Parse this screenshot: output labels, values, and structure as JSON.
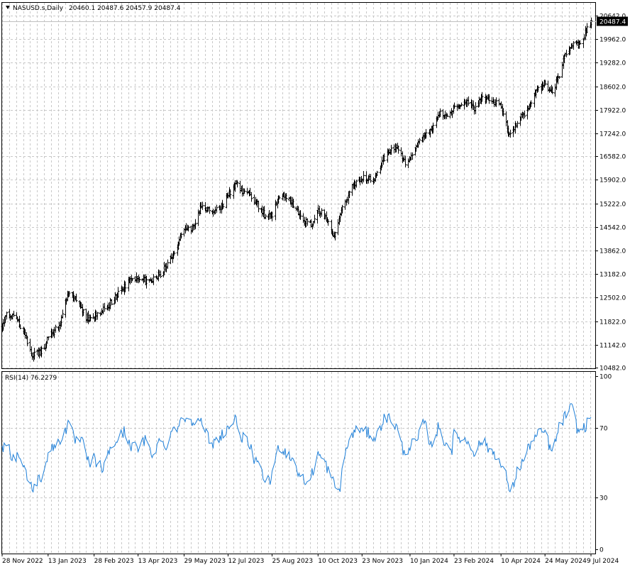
{
  "chart_data": [
    {
      "type": "ohlc",
      "symbol_header": "NASUSD.s,Daily",
      "last_ohlc": "20460.1 20487.6 20457.9 20487.4",
      "last_price_label": "20487.4",
      "last_price": 20487.4,
      "ylim": [
        10482.0,
        20642.0
      ],
      "y_ticks": [
        "20642.0",
        "19962.0",
        "19282.0",
        "18602.0",
        "17922.0",
        "17242.0",
        "16582.0",
        "15902.0",
        "15222.0",
        "14542.0",
        "13862.0",
        "13182.0",
        "12502.0",
        "11822.0",
        "11142.0",
        "10482.0"
      ],
      "x_ticks": [
        "28 Nov 2022",
        "13 Jan 2023",
        "28 Feb 2023",
        "13 Apr 2023",
        "29 May 2023",
        "12 Jul 2023",
        "25 Aug 2023",
        "10 Oct 2023",
        "23 Nov 2023",
        "10 Jan 2024",
        "23 Feb 2024",
        "10 Apr 2024",
        "24 May 2024",
        "9 Jul 2024"
      ],
      "bar_color": "#000000",
      "grid": true,
      "approx_closes": [
        {
          "date": "2022-11-28",
          "close": 11650
        },
        {
          "date": "2022-12-02",
          "close": 12050
        },
        {
          "date": "2022-12-13",
          "close": 11900
        },
        {
          "date": "2022-12-28",
          "close": 10850
        },
        {
          "date": "2023-01-06",
          "close": 10950
        },
        {
          "date": "2023-01-13",
          "close": 11350
        },
        {
          "date": "2023-01-25",
          "close": 11750
        },
        {
          "date": "2023-02-02",
          "close": 12650
        },
        {
          "date": "2023-02-10",
          "close": 12450
        },
        {
          "date": "2023-02-21",
          "close": 11900
        },
        {
          "date": "2023-02-28",
          "close": 11950
        },
        {
          "date": "2023-03-13",
          "close": 12250
        },
        {
          "date": "2023-03-24",
          "close": 12650
        },
        {
          "date": "2023-04-06",
          "close": 13000
        },
        {
          "date": "2023-04-13",
          "close": 13050
        },
        {
          "date": "2023-04-25",
          "close": 12950
        },
        {
          "date": "2023-05-05",
          "close": 13200
        },
        {
          "date": "2023-05-19",
          "close": 13750
        },
        {
          "date": "2023-05-29",
          "close": 14450
        },
        {
          "date": "2023-06-07",
          "close": 14550
        },
        {
          "date": "2023-06-15",
          "close": 15150
        },
        {
          "date": "2023-06-26",
          "close": 15000
        },
        {
          "date": "2023-07-05",
          "close": 15100
        },
        {
          "date": "2023-07-12",
          "close": 15450
        },
        {
          "date": "2023-07-19",
          "close": 15800
        },
        {
          "date": "2023-07-26",
          "close": 15600
        },
        {
          "date": "2023-08-03",
          "close": 15450
        },
        {
          "date": "2023-08-10",
          "close": 15200
        },
        {
          "date": "2023-08-18",
          "close": 14850
        },
        {
          "date": "2023-08-25",
          "close": 14900
        },
        {
          "date": "2023-09-01",
          "close": 15450
        },
        {
          "date": "2023-09-08",
          "close": 15400
        },
        {
          "date": "2023-09-20",
          "close": 15000
        },
        {
          "date": "2023-09-27",
          "close": 14700
        },
        {
          "date": "2023-10-03",
          "close": 14600
        },
        {
          "date": "2023-10-10",
          "close": 15050
        },
        {
          "date": "2023-10-20",
          "close": 14700
        },
        {
          "date": "2023-10-26",
          "close": 14250
        },
        {
          "date": "2023-11-03",
          "close": 15050
        },
        {
          "date": "2023-11-14",
          "close": 15750
        },
        {
          "date": "2023-11-23",
          "close": 15950
        },
        {
          "date": "2023-12-04",
          "close": 15900
        },
        {
          "date": "2023-12-14",
          "close": 16500
        },
        {
          "date": "2023-12-27",
          "close": 16900
        },
        {
          "date": "2024-01-05",
          "close": 16350
        },
        {
          "date": "2024-01-10",
          "close": 16500
        },
        {
          "date": "2024-01-19",
          "close": 17050
        },
        {
          "date": "2024-01-31",
          "close": 17300
        },
        {
          "date": "2024-02-09",
          "close": 17900
        },
        {
          "date": "2024-02-14",
          "close": 17700
        },
        {
          "date": "2024-02-23",
          "close": 17950
        },
        {
          "date": "2024-03-07",
          "close": 18150
        },
        {
          "date": "2024-03-15",
          "close": 17950
        },
        {
          "date": "2024-03-22",
          "close": 18300
        },
        {
          "date": "2024-04-02",
          "close": 18150
        },
        {
          "date": "2024-04-10",
          "close": 18000
        },
        {
          "date": "2024-04-19",
          "close": 17150
        },
        {
          "date": "2024-04-26",
          "close": 17600
        },
        {
          "date": "2024-05-03",
          "close": 17800
        },
        {
          "date": "2024-05-15",
          "close": 18450
        },
        {
          "date": "2024-05-24",
          "close": 18700
        },
        {
          "date": "2024-05-31",
          "close": 18400
        },
        {
          "date": "2024-06-07",
          "close": 18950
        },
        {
          "date": "2024-06-14",
          "close": 19600
        },
        {
          "date": "2024-06-20",
          "close": 19850
        },
        {
          "date": "2024-06-28",
          "close": 19750
        },
        {
          "date": "2024-07-05",
          "close": 20300
        },
        {
          "date": "2024-07-09",
          "close": 20487.4
        }
      ]
    },
    {
      "type": "line",
      "indicator_label": "RSI(14) 76.2279",
      "last_value": 76.2279,
      "ylim": [
        0,
        100
      ],
      "y_ticks": [
        "100",
        "70",
        "30",
        "0"
      ],
      "line_color": "#1e7fd8",
      "grid": true,
      "approx_values": [
        {
          "date": "2022-11-28",
          "value": 58
        },
        {
          "date": "2022-12-02",
          "value": 63
        },
        {
          "date": "2022-12-09",
          "value": 52
        },
        {
          "date": "2022-12-15",
          "value": 55
        },
        {
          "date": "2022-12-22",
          "value": 44
        },
        {
          "date": "2022-12-28",
          "value": 35
        },
        {
          "date": "2023-01-06",
          "value": 42
        },
        {
          "date": "2023-01-13",
          "value": 55
        },
        {
          "date": "2023-01-20",
          "value": 60
        },
        {
          "date": "2023-01-27",
          "value": 65
        },
        {
          "date": "2023-02-02",
          "value": 72
        },
        {
          "date": "2023-02-09",
          "value": 63
        },
        {
          "date": "2023-02-16",
          "value": 62
        },
        {
          "date": "2023-02-23",
          "value": 49
        },
        {
          "date": "2023-02-28",
          "value": 52
        },
        {
          "date": "2023-03-09",
          "value": 46
        },
        {
          "date": "2023-03-16",
          "value": 58
        },
        {
          "date": "2023-03-23",
          "value": 63
        },
        {
          "date": "2023-03-30",
          "value": 68
        },
        {
          "date": "2023-04-06",
          "value": 60
        },
        {
          "date": "2023-04-13",
          "value": 58
        },
        {
          "date": "2023-04-20",
          "value": 63
        },
        {
          "date": "2023-04-27",
          "value": 55
        },
        {
          "date": "2023-05-04",
          "value": 62
        },
        {
          "date": "2023-05-11",
          "value": 60
        },
        {
          "date": "2023-05-18",
          "value": 70
        },
        {
          "date": "2023-05-25",
          "value": 72
        },
        {
          "date": "2023-05-29",
          "value": 77
        },
        {
          "date": "2023-06-05",
          "value": 74
        },
        {
          "date": "2023-06-12",
          "value": 77
        },
        {
          "date": "2023-06-19",
          "value": 68
        },
        {
          "date": "2023-06-26",
          "value": 60
        },
        {
          "date": "2023-07-03",
          "value": 65
        },
        {
          "date": "2023-07-12",
          "value": 70
        },
        {
          "date": "2023-07-19",
          "value": 75
        },
        {
          "date": "2023-07-26",
          "value": 65
        },
        {
          "date": "2023-08-02",
          "value": 60
        },
        {
          "date": "2023-08-09",
          "value": 50
        },
        {
          "date": "2023-08-16",
          "value": 42
        },
        {
          "date": "2023-08-23",
          "value": 38
        },
        {
          "date": "2023-08-25",
          "value": 45
        },
        {
          "date": "2023-09-01",
          "value": 60
        },
        {
          "date": "2023-09-08",
          "value": 56
        },
        {
          "date": "2023-09-15",
          "value": 52
        },
        {
          "date": "2023-09-22",
          "value": 42
        },
        {
          "date": "2023-09-29",
          "value": 38
        },
        {
          "date": "2023-10-03",
          "value": 42
        },
        {
          "date": "2023-10-10",
          "value": 55
        },
        {
          "date": "2023-10-17",
          "value": 50
        },
        {
          "date": "2023-10-24",
          "value": 40
        },
        {
          "date": "2023-10-31",
          "value": 33
        },
        {
          "date": "2023-11-07",
          "value": 58
        },
        {
          "date": "2023-11-14",
          "value": 67
        },
        {
          "date": "2023-11-21",
          "value": 70
        },
        {
          "date": "2023-11-23",
          "value": 68
        },
        {
          "date": "2023-11-30",
          "value": 67
        },
        {
          "date": "2023-12-07",
          "value": 64
        },
        {
          "date": "2023-12-14",
          "value": 75
        },
        {
          "date": "2023-12-21",
          "value": 76
        },
        {
          "date": "2023-12-28",
          "value": 70
        },
        {
          "date": "2024-01-04",
          "value": 55
        },
        {
          "date": "2024-01-10",
          "value": 60
        },
        {
          "date": "2024-01-17",
          "value": 62
        },
        {
          "date": "2024-01-24",
          "value": 74
        },
        {
          "date": "2024-01-31",
          "value": 60
        },
        {
          "date": "2024-02-07",
          "value": 70
        },
        {
          "date": "2024-02-14",
          "value": 62
        },
        {
          "date": "2024-02-21",
          "value": 58
        },
        {
          "date": "2024-02-23",
          "value": 66
        },
        {
          "date": "2024-03-01",
          "value": 64
        },
        {
          "date": "2024-03-08",
          "value": 62
        },
        {
          "date": "2024-03-15",
          "value": 56
        },
        {
          "date": "2024-03-22",
          "value": 63
        },
        {
          "date": "2024-03-29",
          "value": 58
        },
        {
          "date": "2024-04-05",
          "value": 55
        },
        {
          "date": "2024-04-10",
          "value": 48
        },
        {
          "date": "2024-04-17",
          "value": 40
        },
        {
          "date": "2024-04-19",
          "value": 30
        },
        {
          "date": "2024-04-26",
          "value": 45
        },
        {
          "date": "2024-05-03",
          "value": 52
        },
        {
          "date": "2024-05-10",
          "value": 62
        },
        {
          "date": "2024-05-17",
          "value": 66
        },
        {
          "date": "2024-05-24",
          "value": 68
        },
        {
          "date": "2024-05-31",
          "value": 55
        },
        {
          "date": "2024-06-07",
          "value": 70
        },
        {
          "date": "2024-06-14",
          "value": 78
        },
        {
          "date": "2024-06-20",
          "value": 82
        },
        {
          "date": "2024-06-26",
          "value": 68
        },
        {
          "date": "2024-07-02",
          "value": 70
        },
        {
          "date": "2024-07-09",
          "value": 76.2279
        }
      ]
    }
  ]
}
